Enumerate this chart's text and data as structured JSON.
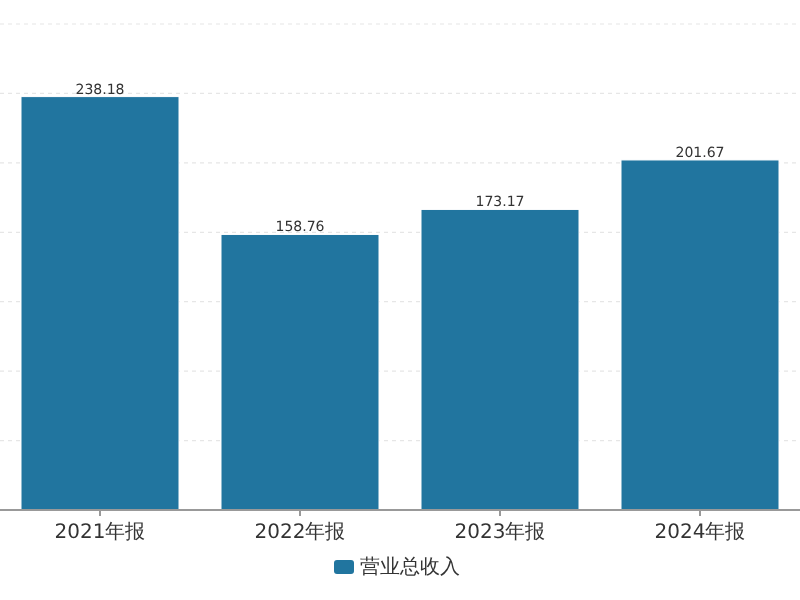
{
  "chart_data": {
    "type": "bar",
    "categories": [
      "2021年报",
      "2022年报",
      "2023年报",
      "2024年报"
    ],
    "series": [
      {
        "name": "营业总收入",
        "color": "#21759f",
        "values": [
          238.18,
          158.76,
          173.17,
          201.67
        ]
      }
    ],
    "data_labels": true,
    "ylim": [
      0,
      280
    ],
    "yticks": [
      {
        "value": 0,
        "label": null
      },
      {
        "value": 40,
        "label": null
      },
      {
        "value": 80,
        "label": null
      },
      {
        "value": 120,
        "label": null
      },
      {
        "value": 160,
        "label": null
      },
      {
        "value": 200,
        "label": null
      },
      {
        "value": 240,
        "label": null
      },
      {
        "value": 280,
        "label": null
      }
    ],
    "grid": "y",
    "tick_labels": "x",
    "legend": "bottom"
  }
}
